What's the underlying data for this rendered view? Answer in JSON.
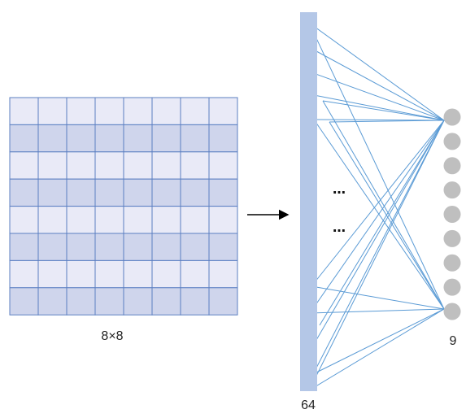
{
  "grid": {
    "label": "8×8",
    "rows": 8,
    "cols": 8,
    "colors": {
      "light": "#e9eaf7",
      "dark": "#cfd5ec",
      "border": "#5b7fc2"
    }
  },
  "input_layer": {
    "label": "64",
    "color": "#b4c7e7"
  },
  "output_layer": {
    "label": "9",
    "node_count": 9,
    "node_color": "#bfbfbf"
  },
  "connection_color": "#5b9bd5",
  "ellipsis": [
    "…",
    "…"
  ]
}
